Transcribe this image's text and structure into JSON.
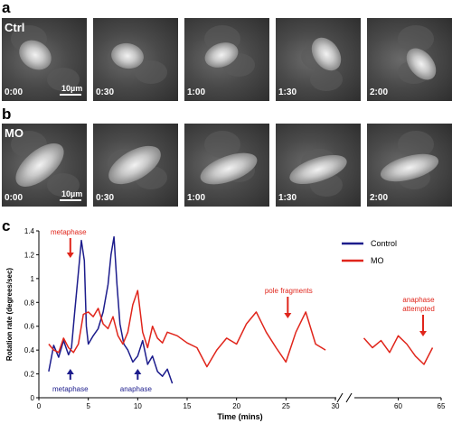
{
  "panels": {
    "a": {
      "label": "a",
      "condition": "Ctrl",
      "scale": "10µm",
      "frames": [
        "0:00",
        "0:30",
        "1:00",
        "1:30",
        "2:00"
      ]
    },
    "b": {
      "label": "b",
      "condition": "MO",
      "scale": "10µm",
      "frames": [
        "0:00",
        "0:30",
        "1:00",
        "1:30",
        "2:00"
      ]
    },
    "c": {
      "label": "c"
    }
  },
  "colors": {
    "control": "#1c1c8c",
    "mo": "#e0251b"
  },
  "chart_data": {
    "type": "line",
    "xlabel": "Time (mins)",
    "ylabel": "Rotation rate (degrees/sec)",
    "xlim": [
      0,
      65
    ],
    "ylim": [
      0,
      1.4
    ],
    "axis_break": [
      30,
      55
    ],
    "xticks": [
      "0",
      "5",
      "10",
      "15",
      "20",
      "25",
      "30",
      "60",
      "65"
    ],
    "yticks": [
      "0",
      "0.2",
      "0.4",
      "0.6",
      "0.8",
      "1",
      "1.2",
      "1.4"
    ],
    "legend_position": "top-right",
    "series": [
      {
        "name": "Control",
        "color": "#1c1c8c",
        "x": [
          1,
          1.5,
          2,
          2.5,
          3,
          3.3,
          3.6,
          4,
          4.3,
          4.6,
          4.8,
          5,
          5.5,
          6,
          6.5,
          7,
          7.3,
          7.6,
          7.9,
          8.2,
          8.6,
          9,
          9.5,
          10,
          10.5,
          11,
          11.5,
          12,
          12.5,
          13,
          13.5
        ],
        "y": [
          0.22,
          0.44,
          0.34,
          0.48,
          0.36,
          0.42,
          0.7,
          1.05,
          1.32,
          1.15,
          0.6,
          0.45,
          0.52,
          0.58,
          0.72,
          0.95,
          1.2,
          1.35,
          0.95,
          0.62,
          0.45,
          0.4,
          0.3,
          0.35,
          0.48,
          0.28,
          0.35,
          0.22,
          0.18,
          0.24,
          0.12
        ]
      },
      {
        "name": "MO",
        "color": "#e0251b",
        "x": [
          1,
          1.5,
          2,
          2.5,
          3,
          3.5,
          4,
          4.5,
          5,
          5.5,
          6,
          6.5,
          7,
          7.5,
          8,
          8.5,
          9,
          9.5,
          10,
          10.5,
          11,
          11.5,
          12,
          12.5,
          13,
          14,
          15,
          16,
          17,
          18,
          19,
          20,
          21,
          22,
          23,
          24,
          25,
          26,
          27,
          28,
          29,
          56,
          57,
          58,
          59,
          60,
          61,
          62,
          63,
          64
        ],
        "y": [
          0.45,
          0.4,
          0.38,
          0.5,
          0.42,
          0.38,
          0.45,
          0.7,
          0.72,
          0.68,
          0.75,
          0.62,
          0.58,
          0.68,
          0.52,
          0.45,
          0.55,
          0.78,
          0.9,
          0.55,
          0.42,
          0.6,
          0.5,
          0.46,
          0.55,
          0.52,
          0.46,
          0.42,
          0.26,
          0.4,
          0.5,
          0.45,
          0.62,
          0.72,
          0.55,
          0.42,
          0.3,
          0.55,
          0.72,
          0.45,
          0.4,
          0.5,
          0.42,
          0.48,
          0.38,
          0.52,
          0.45,
          0.35,
          0.28,
          0.42
        ]
      }
    ],
    "annotations": [
      {
        "text": "metaphase",
        "color": "#e0251b",
        "x": 3,
        "position": "above"
      },
      {
        "text": "pole fragments",
        "color": "#e0251b",
        "x": 25,
        "position": "above"
      },
      {
        "text": "anaphase\nattempted",
        "color": "#e0251b",
        "x": 63,
        "position": "above"
      },
      {
        "text": "metaphase",
        "color": "#1c1c8c",
        "x": 3,
        "position": "below"
      },
      {
        "text": "anaphase",
        "color": "#1c1c8c",
        "x": 10,
        "position": "below"
      }
    ]
  }
}
